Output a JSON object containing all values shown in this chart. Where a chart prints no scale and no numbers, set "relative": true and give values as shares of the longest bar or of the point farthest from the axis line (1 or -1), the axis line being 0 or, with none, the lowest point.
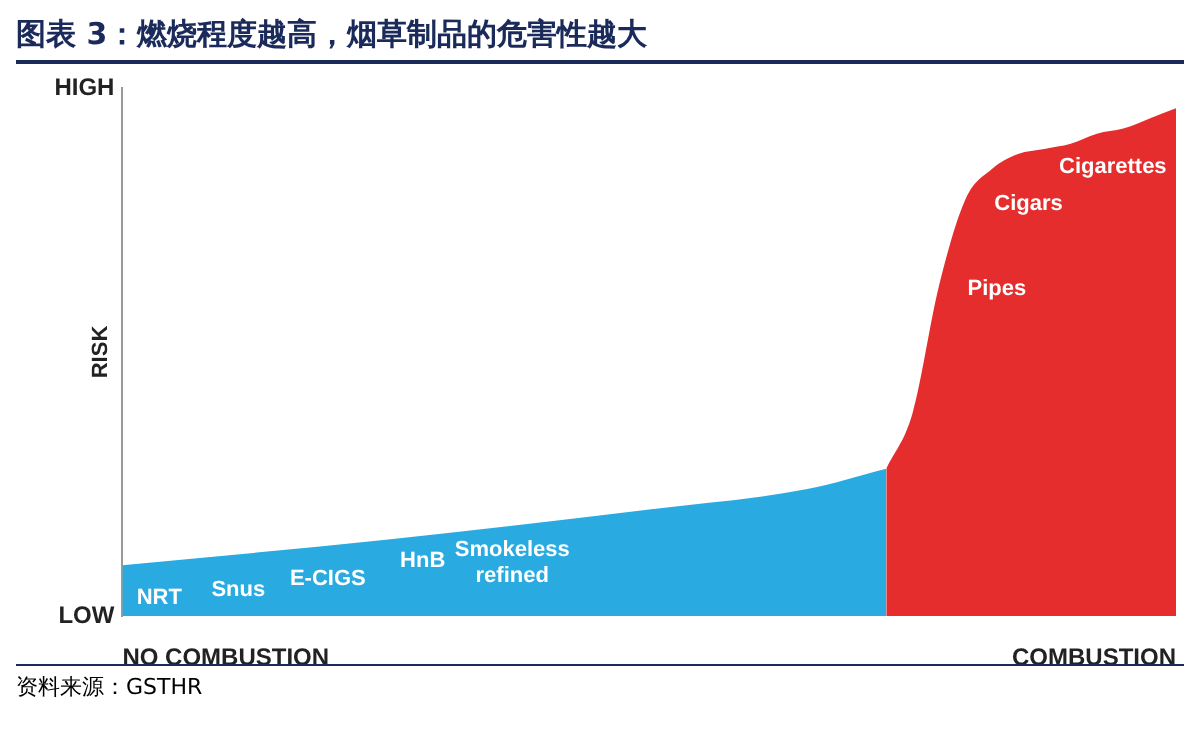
{
  "chart_data": {
    "type": "area",
    "title": "图表 3：燃烧程度越高，烟草制品的危害性越大",
    "ylabel": "RISK",
    "relative": true,
    "categories": [
      null,
      null,
      null,
      null,
      null,
      null,
      null,
      null,
      null,
      null,
      null,
      null,
      null,
      null,
      null,
      null,
      null,
      null,
      null,
      null,
      null,
      null,
      null,
      null,
      null,
      null,
      null,
      null,
      null,
      null,
      null,
      null,
      null,
      null,
      null,
      null,
      null,
      null,
      null,
      null,
      null
    ],
    "series": [
      {
        "color": "#29abe2",
        "values": [
          0.1,
          null,
          null,
          null,
          null,
          null,
          null,
          null,
          null,
          null,
          0.15,
          null,
          null,
          null,
          null,
          null,
          null,
          null,
          null,
          null,
          0.21,
          null,
          null,
          null,
          null,
          null,
          0.25,
          null,
          null,
          0.29,
          null,
          null,
          null,
          null,
          null,
          null,
          null,
          null,
          null,
          null,
          null
        ]
      },
      {
        "color": "#e52d2d",
        "values": [
          null,
          null,
          null,
          null,
          null,
          null,
          null,
          null,
          null,
          null,
          null,
          null,
          null,
          null,
          null,
          null,
          null,
          null,
          null,
          null,
          null,
          null,
          null,
          null,
          null,
          null,
          null,
          null,
          null,
          0.29,
          0.4,
          0.65,
          0.82,
          0.88,
          0.91,
          0.92,
          0.93,
          0.95,
          0.96,
          0.98,
          1
        ]
      }
    ],
    "annotations": [
      "NRT",
      "Snus",
      "E-CIGS",
      "HnB",
      "Smokeless\nrefined",
      "Pipes",
      "Cigars",
      "Cigarettes",
      "HIGH",
      "LOW",
      "NO COMBUSTION",
      "COMBUSTION",
      "资料来源：GSTHR"
    ]
  }
}
